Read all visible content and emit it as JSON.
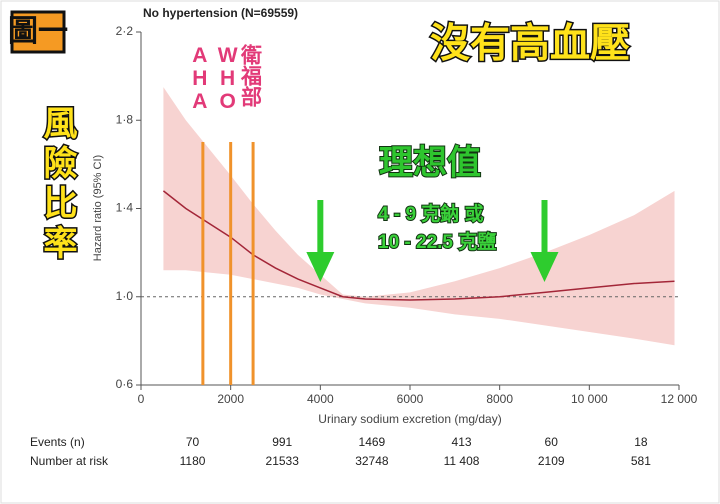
{
  "chart_data": {
    "type": "line",
    "title": "No hypertension (N=69559)",
    "x_label": "Urinary sodium excretion (mg/day)",
    "y_label": "Hazard ratio (95% CI)",
    "x": [
      500,
      1000,
      2000,
      2500,
      3000,
      3500,
      4000,
      4500,
      5000,
      6000,
      7000,
      8000,
      9000,
      10000,
      11000,
      11900
    ],
    "values": [
      1.48,
      1.4,
      1.27,
      1.19,
      1.13,
      1.08,
      1.04,
      1.0,
      0.99,
      0.985,
      0.99,
      1.0,
      1.02,
      1.04,
      1.06,
      1.07
    ],
    "ci_lower": [
      1.12,
      1.12,
      1.1,
      1.08,
      1.06,
      1.04,
      1.01,
      0.99,
      0.97,
      0.95,
      0.92,
      0.9,
      0.87,
      0.84,
      0.81,
      0.78
    ],
    "ci_upper": [
      1.95,
      1.8,
      1.55,
      1.42,
      1.3,
      1.19,
      1.1,
      1.01,
      1.0,
      1.02,
      1.07,
      1.13,
      1.2,
      1.28,
      1.37,
      1.48
    ],
    "color": "#a32638",
    "ci_color": "#f7d3d1",
    "reference_y": 1.0,
    "xlim": [
      0,
      12000
    ],
    "ylim": [
      0.6,
      2.2
    ],
    "xticks": [
      0,
      2000,
      4000,
      6000,
      8000,
      {
        "value": 10000,
        "label": "10 000"
      },
      {
        "value": 12000,
        "label": "12 000"
      }
    ],
    "yticks": [
      {
        "value": 0.6,
        "label": "0·6"
      },
      {
        "value": 1.0,
        "label": "1·0"
      },
      {
        "value": 1.4,
        "label": "1·4"
      },
      {
        "value": 1.8,
        "label": "1·8"
      },
      {
        "value": 2.2,
        "label": "2·2"
      }
    ],
    "guidelines": [
      {
        "label": "AHA",
        "x": 1380
      },
      {
        "label": "WHO",
        "x": 2000
      },
      {
        "label": "衛福部",
        "x": 2500
      }
    ],
    "arrows_x": [
      4000,
      9000
    ]
  },
  "overlay": {
    "figure_label": "圖一",
    "heading": "沒有高血壓",
    "side_label": "風險比率",
    "ideal_title": "理想值",
    "ideal_lines": [
      "4 - 9 克鈉 或",
      "10 - 22.5 克鹽"
    ]
  },
  "table": {
    "rows": [
      {
        "label": "Events (n)",
        "values": [
          "70",
          "991",
          "1469",
          "413",
          "60",
          "18"
        ]
      },
      {
        "label": "Number at risk",
        "values": [
          "1180",
          "21533",
          "32748",
          "11 408",
          "2109",
          "581"
        ]
      }
    ]
  }
}
